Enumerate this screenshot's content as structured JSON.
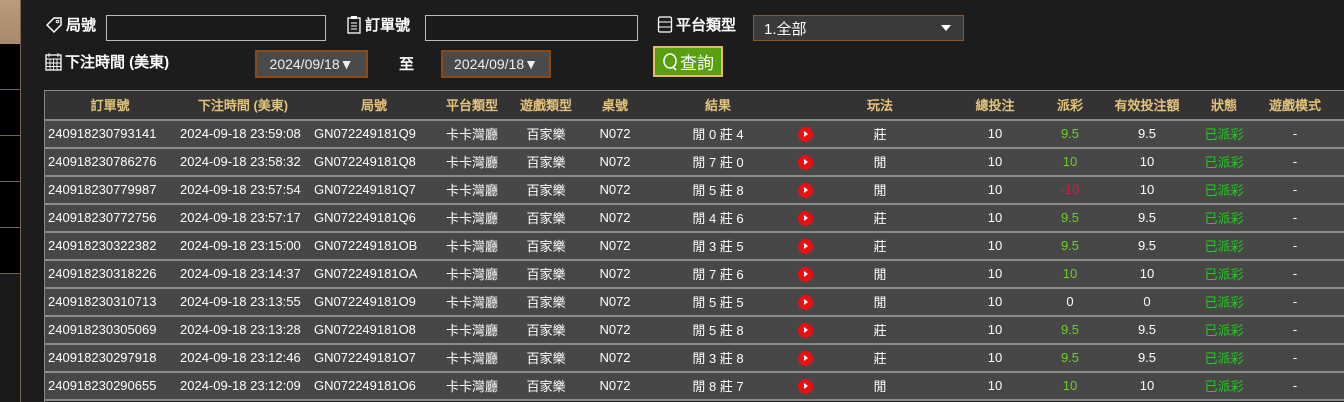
{
  "filters": {
    "round_label": "局號",
    "round_value": "",
    "order_label": "訂單號",
    "order_value": "",
    "platform_label": "平台類型",
    "platform_value": "1.全部",
    "time_label": "下注時間 (美東)",
    "date_from": "2024/09/18▼",
    "to_label": "至",
    "date_to": "2024/09/18▼",
    "query_label": "查詢"
  },
  "colors": {
    "accent": "#58a010",
    "header_text": "#e3c27a",
    "positive": "#6ad02a",
    "negative": "#d02040",
    "status": "#1ecc1e"
  },
  "table": {
    "headers": [
      "訂單號",
      "下注時間 (美東)",
      "局號",
      "平台類型",
      "遊戲類型",
      "桌號",
      "結果",
      "",
      "玩法",
      "總投注",
      "派彩",
      "有效投注額",
      "狀態",
      "遊戲模式"
    ],
    "rows": [
      [
        "240918230793141",
        "2024-09-18 23:59:08",
        "GN072249181Q9",
        "卡卡灣廳",
        "百家樂",
        "N072",
        "閒 0 莊 4",
        "莊",
        "10",
        "9.5",
        "9.5",
        "已派彩",
        "-"
      ],
      [
        "240918230786276",
        "2024-09-18 23:58:32",
        "GN072249181Q8",
        "卡卡灣廳",
        "百家樂",
        "N072",
        "閒 7 莊 0",
        "閒",
        "10",
        "10",
        "10",
        "已派彩",
        "-"
      ],
      [
        "240918230779987",
        "2024-09-18 23:57:54",
        "GN072249181Q7",
        "卡卡灣廳",
        "百家樂",
        "N072",
        "閒 5 莊 8",
        "閒",
        "10",
        "-10",
        "10",
        "已派彩",
        "-"
      ],
      [
        "240918230772756",
        "2024-09-18 23:57:17",
        "GN072249181Q6",
        "卡卡灣廳",
        "百家樂",
        "N072",
        "閒 4 莊 6",
        "莊",
        "10",
        "9.5",
        "9.5",
        "已派彩",
        "-"
      ],
      [
        "240918230322382",
        "2024-09-18 23:15:00",
        "GN072249181OB",
        "卡卡灣廳",
        "百家樂",
        "N072",
        "閒 3 莊 5",
        "莊",
        "10",
        "9.5",
        "9.5",
        "已派彩",
        "-"
      ],
      [
        "240918230318226",
        "2024-09-18 23:14:37",
        "GN072249181OA",
        "卡卡灣廳",
        "百家樂",
        "N072",
        "閒 7 莊 6",
        "閒",
        "10",
        "10",
        "10",
        "已派彩",
        "-"
      ],
      [
        "240918230310713",
        "2024-09-18 23:13:55",
        "GN072249181O9",
        "卡卡灣廳",
        "百家樂",
        "N072",
        "閒 5 莊 5",
        "閒",
        "10",
        "0",
        "0",
        "已派彩",
        "-"
      ],
      [
        "240918230305069",
        "2024-09-18 23:13:28",
        "GN072249181O8",
        "卡卡灣廳",
        "百家樂",
        "N072",
        "閒 5 莊 8",
        "莊",
        "10",
        "9.5",
        "9.5",
        "已派彩",
        "-"
      ],
      [
        "240918230297918",
        "2024-09-18 23:12:46",
        "GN072249181O7",
        "卡卡灣廳",
        "百家樂",
        "N072",
        "閒 3 莊 8",
        "莊",
        "10",
        "9.5",
        "9.5",
        "已派彩",
        "-"
      ],
      [
        "240918230290655",
        "2024-09-18 23:12:09",
        "GN072249181O6",
        "卡卡灣廳",
        "百家樂",
        "N072",
        "閒 8 莊 7",
        "閒",
        "10",
        "10",
        "10",
        "已派彩",
        "-"
      ]
    ]
  }
}
